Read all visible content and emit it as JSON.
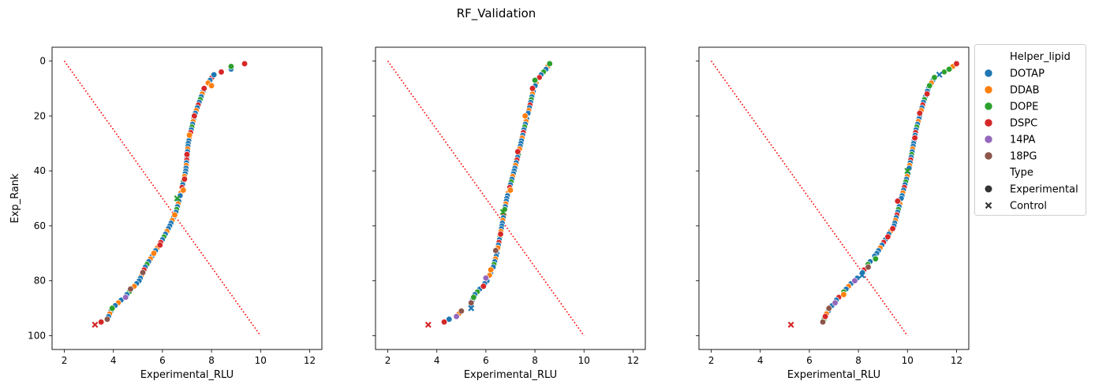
{
  "suptitle": "RF_Validation",
  "chart_data": {
    "type": "scatter",
    "title": "RF_Validation",
    "xlabel": "Experimental_RLU",
    "ylabel": "Exp_Rank",
    "xlim": [
      1.5,
      12.5
    ],
    "ylim": [
      105,
      -5
    ],
    "xticks": [
      "2",
      "4",
      "6",
      "8",
      "10",
      "12"
    ],
    "yticks": [
      "0",
      "20",
      "40",
      "60",
      "80",
      "100"
    ],
    "legend": {
      "placement": "outside-right",
      "hue_title": "Helper_lipid",
      "hue": [
        {
          "name": "DOTAP",
          "color": "#1f77b4"
        },
        {
          "name": "DDAB",
          "color": "#ff7f0e"
        },
        {
          "name": "DOPE",
          "color": "#2ca02c"
        },
        {
          "name": "DSPC",
          "color": "#d62728"
        },
        {
          "name": "14PA",
          "color": "#9467bd"
        },
        {
          "name": "18PG",
          "color": "#8c564b"
        }
      ],
      "style_title": "Type",
      "style": [
        {
          "name": "Experimental",
          "marker": "circle"
        },
        {
          "name": "Control",
          "marker": "x"
        }
      ]
    },
    "reference_line": {
      "color": "#ff0000",
      "style": "dotted",
      "x": [
        2,
        10
      ],
      "y": [
        0,
        100
      ]
    },
    "subplots": [
      {
        "panel": 1,
        "curve_rank": [
          1,
          3,
          5,
          10,
          15,
          20,
          30,
          40,
          50,
          55,
          60,
          65,
          70,
          75,
          80,
          85,
          88,
          90,
          93,
          95,
          96
        ],
        "curve_x": [
          9.4,
          8.8,
          8.1,
          7.7,
          7.5,
          7.3,
          7.05,
          6.95,
          6.7,
          6.55,
          6.3,
          6.0,
          5.65,
          5.3,
          5.05,
          4.55,
          4.2,
          3.95,
          3.8,
          3.5,
          3.25
        ],
        "points": [
          {
            "rank": 1,
            "x": 9.35,
            "lipid": "DSPC",
            "type": "Experimental"
          },
          {
            "rank": 2,
            "x": 8.8,
            "lipid": "DOPE",
            "type": "Experimental"
          },
          {
            "rank": 4,
            "x": 8.4,
            "lipid": "DSPC",
            "type": "Experimental"
          },
          {
            "rank": 5,
            "x": 8.1,
            "lipid": "DOTAP",
            "type": "Experimental"
          },
          {
            "rank": 9,
            "x": 8.0,
            "lipid": "DDAB",
            "type": "Experimental"
          },
          {
            "rank": 10,
            "x": 7.7,
            "lipid": "DSPC",
            "type": "Experimental"
          },
          {
            "rank": 20,
            "x": 7.3,
            "lipid": "DSPC",
            "type": "Experimental"
          },
          {
            "rank": 27,
            "x": 7.1,
            "lipid": "DDAB",
            "type": "Experimental"
          },
          {
            "rank": 34,
            "x": 7.0,
            "lipid": "DSPC",
            "type": "Experimental"
          },
          {
            "rank": 43,
            "x": 6.9,
            "lipid": "DSPC",
            "type": "Experimental"
          },
          {
            "rank": 47,
            "x": 6.85,
            "lipid": "DDAB",
            "type": "Experimental"
          },
          {
            "rank": 50,
            "x": 6.6,
            "lipid": "DOPE",
            "type": "Control"
          },
          {
            "rank": 56,
            "x": 6.5,
            "lipid": "DDAB",
            "type": "Experimental"
          },
          {
            "rank": 67,
            "x": 5.9,
            "lipid": "DSPC",
            "type": "Experimental"
          },
          {
            "rank": 70,
            "x": 5.65,
            "lipid": "DDAB",
            "type": "Experimental"
          },
          {
            "rank": 77,
            "x": 5.2,
            "lipid": "18PG",
            "type": "Experimental"
          },
          {
            "rank": 83,
            "x": 4.7,
            "lipid": "18PG",
            "type": "Experimental"
          },
          {
            "rank": 86,
            "x": 4.5,
            "lipid": "14PA",
            "type": "Experimental"
          },
          {
            "rank": 90,
            "x": 3.95,
            "lipid": "DOPE",
            "type": "Experimental"
          },
          {
            "rank": 94,
            "x": 3.75,
            "lipid": "18PG",
            "type": "Experimental"
          },
          {
            "rank": 95,
            "x": 3.5,
            "lipid": "DSPC",
            "type": "Experimental"
          },
          {
            "rank": 96,
            "x": 3.25,
            "lipid": "DSPC",
            "type": "Control"
          }
        ]
      },
      {
        "panel": 2,
        "curve_rank": [
          1,
          3,
          5,
          8,
          12,
          18,
          25,
          33,
          40,
          45,
          50,
          55,
          60,
          65,
          70,
          75,
          80,
          85,
          88,
          90,
          91,
          93,
          94,
          95
        ],
        "curve_x": [
          8.6,
          8.45,
          8.25,
          8.05,
          7.9,
          7.75,
          7.55,
          7.35,
          7.15,
          7.0,
          6.85,
          6.75,
          6.65,
          6.55,
          6.45,
          6.3,
          6.05,
          5.55,
          5.4,
          5.4,
          5.0,
          4.8,
          4.5,
          4.3
        ],
        "points": [
          {
            "rank": 1,
            "x": 8.6,
            "lipid": "DOPE",
            "type": "Experimental"
          },
          {
            "rank": 7,
            "x": 8.0,
            "lipid": "DOPE",
            "type": "Experimental"
          },
          {
            "rank": 10,
            "x": 7.9,
            "lipid": "DSPC",
            "type": "Experimental"
          },
          {
            "rank": 20,
            "x": 7.6,
            "lipid": "DDAB",
            "type": "Experimental"
          },
          {
            "rank": 33,
            "x": 7.3,
            "lipid": "DSPC",
            "type": "Experimental"
          },
          {
            "rank": 47,
            "x": 7.0,
            "lipid": "DDAB",
            "type": "Experimental"
          },
          {
            "rank": 55,
            "x": 6.7,
            "lipid": "DOPE",
            "type": "Control"
          },
          {
            "rank": 63,
            "x": 6.6,
            "lipid": "DSPC",
            "type": "Experimental"
          },
          {
            "rank": 69,
            "x": 6.4,
            "lipid": "18PG",
            "type": "Experimental"
          },
          {
            "rank": 76,
            "x": 6.2,
            "lipid": "DDAB",
            "type": "Experimental"
          },
          {
            "rank": 79,
            "x": 6.0,
            "lipid": "14PA",
            "type": "Experimental"
          },
          {
            "rank": 82,
            "x": 5.9,
            "lipid": "DSPC",
            "type": "Experimental"
          },
          {
            "rank": 86,
            "x": 5.5,
            "lipid": "DOPE",
            "type": "Experimental"
          },
          {
            "rank": 88,
            "x": 5.4,
            "lipid": "18PG",
            "type": "Experimental"
          },
          {
            "rank": 90,
            "x": 5.4,
            "lipid": "DOTAP",
            "type": "Control"
          },
          {
            "rank": 91,
            "x": 5.0,
            "lipid": "18PG",
            "type": "Experimental"
          },
          {
            "rank": 93,
            "x": 4.8,
            "lipid": "14PA",
            "type": "Experimental"
          },
          {
            "rank": 94,
            "x": 4.5,
            "lipid": "DOTAP",
            "type": "Experimental"
          },
          {
            "rank": 95,
            "x": 4.3,
            "lipid": "DSPC",
            "type": "Experimental"
          },
          {
            "rank": 96,
            "x": 3.65,
            "lipid": "DSPC",
            "type": "Control"
          }
        ]
      },
      {
        "panel": 3,
        "curve_rank": [
          1,
          3,
          6,
          10,
          15,
          20,
          25,
          30,
          40,
          50,
          60,
          65,
          70,
          75,
          78,
          80,
          82,
          85,
          88,
          90,
          92,
          94,
          95
        ],
        "curve_x": [
          12.0,
          11.7,
          11.1,
          10.85,
          10.65,
          10.5,
          10.35,
          10.25,
          10.05,
          9.75,
          9.45,
          9.1,
          8.75,
          8.3,
          8.1,
          7.8,
          7.6,
          7.3,
          7.0,
          6.85,
          6.7,
          6.6,
          6.55
        ],
        "points": [
          {
            "rank": 1,
            "x": 12.0,
            "lipid": "DSPC",
            "type": "Experimental"
          },
          {
            "rank": 3,
            "x": 11.7,
            "lipid": "DOPE",
            "type": "Experimental"
          },
          {
            "rank": 5,
            "x": 11.3,
            "lipid": "DOTAP",
            "type": "Control"
          },
          {
            "rank": 6,
            "x": 11.1,
            "lipid": "DOPE",
            "type": "Experimental"
          },
          {
            "rank": 9,
            "x": 10.9,
            "lipid": "DOPE",
            "type": "Experimental"
          },
          {
            "rank": 12,
            "x": 10.8,
            "lipid": "DSPC",
            "type": "Experimental"
          },
          {
            "rank": 19,
            "x": 10.5,
            "lipid": "DSPC",
            "type": "Experimental"
          },
          {
            "rank": 28,
            "x": 10.3,
            "lipid": "DSPC",
            "type": "Experimental"
          },
          {
            "rank": 40,
            "x": 10.0,
            "lipid": "DOPE",
            "type": "Control"
          },
          {
            "rank": 51,
            "x": 9.6,
            "lipid": "DSPC",
            "type": "Experimental"
          },
          {
            "rank": 61,
            "x": 9.4,
            "lipid": "DSPC",
            "type": "Experimental"
          },
          {
            "rank": 64,
            "x": 9.2,
            "lipid": "DSPC",
            "type": "Experimental"
          },
          {
            "rank": 72,
            "x": 8.7,
            "lipid": "DOPE",
            "type": "Experimental"
          },
          {
            "rank": 75,
            "x": 8.4,
            "lipid": "18PG",
            "type": "Experimental"
          },
          {
            "rank": 78,
            "x": 8.15,
            "lipid": "DOTAP",
            "type": "Control"
          },
          {
            "rank": 80,
            "x": 7.85,
            "lipid": "14PA",
            "type": "Experimental"
          },
          {
            "rank": 85,
            "x": 7.4,
            "lipid": "DDAB",
            "type": "Experimental"
          },
          {
            "rank": 88,
            "x": 7.05,
            "lipid": "14PA",
            "type": "Experimental"
          },
          {
            "rank": 90,
            "x": 6.8,
            "lipid": "18PG",
            "type": "Experimental"
          },
          {
            "rank": 93,
            "x": 6.65,
            "lipid": "DSPC",
            "type": "Experimental"
          },
          {
            "rank": 95,
            "x": 6.55,
            "lipid": "18PG",
            "type": "Experimental"
          },
          {
            "rank": 96,
            "x": 5.25,
            "lipid": "DSPC",
            "type": "Control"
          }
        ]
      }
    ]
  }
}
